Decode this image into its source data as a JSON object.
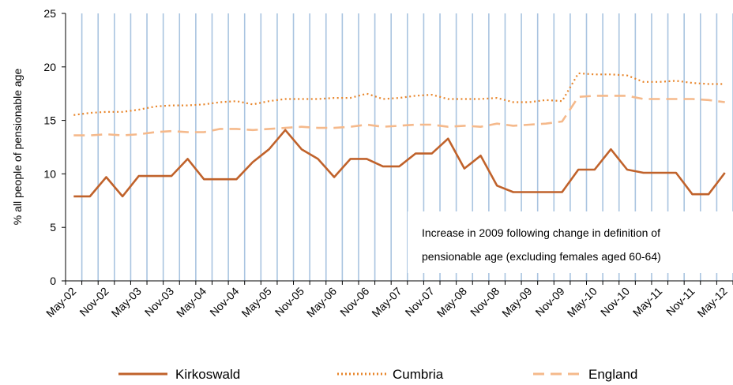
{
  "chart_data": {
    "type": "line",
    "title": "",
    "xlabel": "",
    "ylabel": "% all people of pensionable  age",
    "ylim": [
      0,
      25
    ],
    "yticks": [
      0,
      5,
      10,
      15,
      20,
      25
    ],
    "x": [
      "May-02",
      "Aug-02",
      "Nov-02",
      "Feb-03",
      "May-03",
      "Aug-03",
      "Nov-03",
      "Feb-04",
      "May-04",
      "Aug-04",
      "Nov-04",
      "Feb-05",
      "May-05",
      "Aug-05",
      "Nov-05",
      "Feb-06",
      "May-06",
      "Aug-06",
      "Nov-06",
      "Feb-07",
      "May-07",
      "Aug-07",
      "Nov-07",
      "Feb-08",
      "May-08",
      "Aug-08",
      "Nov-08",
      "Feb-09",
      "May-09",
      "Aug-09",
      "Nov-09",
      "Feb-10",
      "May-10",
      "Aug-10",
      "Nov-10",
      "Feb-11",
      "May-11",
      "Aug-11",
      "Nov-11",
      "Feb-12",
      "May-12"
    ],
    "x_tick_labels": [
      "May-02",
      "Nov-02",
      "May-03",
      "Nov-03",
      "May-04",
      "Nov-04",
      "May-05",
      "Nov-05",
      "May-06",
      "Nov-06",
      "May-07",
      "Nov-07",
      "May-08",
      "Nov-08",
      "May-09",
      "Nov-09",
      "May-10",
      "Nov-10",
      "May-11",
      "Nov-11",
      "May-12"
    ],
    "grid": "vertical",
    "legend_position": "bottom",
    "series": [
      {
        "name": "Kirkoswald",
        "color": "#c0622b",
        "style": "solid",
        "values": [
          7.9,
          7.9,
          9.7,
          7.9,
          9.8,
          9.8,
          9.8,
          11.4,
          9.5,
          9.5,
          9.5,
          11.1,
          12.3,
          14.1,
          12.3,
          11.4,
          9.7,
          11.4,
          11.4,
          10.7,
          10.7,
          11.9,
          11.9,
          13.3,
          10.5,
          11.7,
          8.9,
          8.3,
          8.3,
          8.3,
          8.3,
          10.4,
          10.4,
          12.3,
          10.4,
          10.1,
          10.1,
          10.1,
          8.1,
          8.1,
          10.1
        ]
      },
      {
        "name": "Cumbria",
        "color": "#e8852a",
        "style": "dotted",
        "values": [
          15.5,
          15.7,
          15.8,
          15.8,
          16.0,
          16.3,
          16.4,
          16.4,
          16.5,
          16.7,
          16.8,
          16.5,
          16.8,
          17.0,
          17.0,
          17.0,
          17.1,
          17.1,
          17.5,
          17.0,
          17.1,
          17.3,
          17.4,
          17.0,
          17.0,
          17.0,
          17.1,
          16.7,
          16.7,
          16.9,
          16.8,
          19.4,
          19.3,
          19.3,
          19.2,
          18.6,
          18.6,
          18.7,
          18.5,
          18.4,
          18.4
        ]
      },
      {
        "name": "England",
        "color": "#f5b98b",
        "style": "dashed",
        "values": [
          13.6,
          13.6,
          13.7,
          13.6,
          13.7,
          13.9,
          14.0,
          13.9,
          13.9,
          14.2,
          14.2,
          14.1,
          14.2,
          14.3,
          14.4,
          14.3,
          14.3,
          14.4,
          14.6,
          14.4,
          14.5,
          14.6,
          14.6,
          14.4,
          14.5,
          14.4,
          14.7,
          14.5,
          14.6,
          14.7,
          14.9,
          17.2,
          17.3,
          17.3,
          17.3,
          17.0,
          17.0,
          17.0,
          17.0,
          16.9,
          16.7
        ]
      }
    ],
    "annotation": {
      "lines": [
        "Increase in 2009 following change in definition of",
        "pensionable age (excluding females aged 60-64)"
      ]
    }
  },
  "colors": {
    "grid": "#a9c4e0",
    "axis": "#000000"
  }
}
